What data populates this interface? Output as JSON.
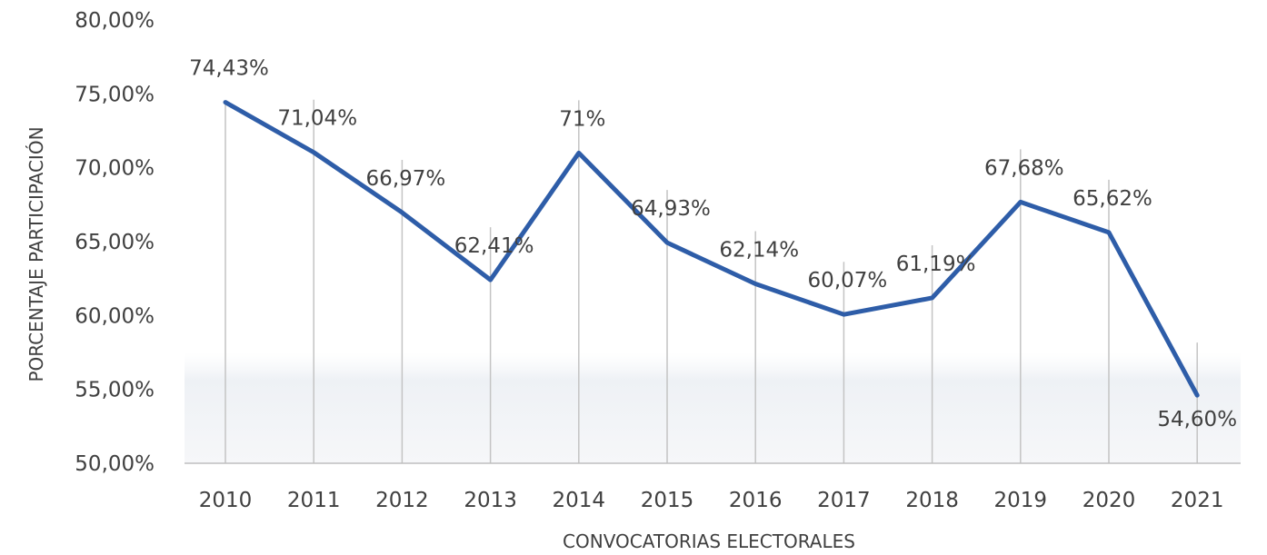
{
  "chart_data": {
    "type": "line",
    "title": "",
    "xlabel": "CONVOCATORIAS ELECTORALES",
    "ylabel": "PORCENTAJE PARTICIPACIÓN",
    "ylim": [
      50,
      80
    ],
    "y_ticks": [
      50,
      55,
      60,
      65,
      70,
      75,
      80
    ],
    "y_tick_labels": [
      "50,00%",
      "55,00%",
      "60,00%",
      "65,00%",
      "70,00%",
      "75,00%",
      "80,00%"
    ],
    "categories": [
      "2010",
      "2011",
      "2012",
      "2013",
      "2014",
      "2015",
      "2016",
      "2017",
      "2018",
      "2019",
      "2020",
      "2021"
    ],
    "series": [
      {
        "values": [
          74.43,
          71.04,
          66.97,
          62.41,
          71,
          64.93,
          62.14,
          60.07,
          61.19,
          67.68,
          65.62,
          54.6
        ],
        "labels": [
          "74,43%",
          "71,04%",
          "66,97%",
          "62,41%",
          "71%",
          "64,93%",
          "62,14%",
          "60,07%",
          "61,19%",
          "67,68%",
          "65,62%",
          "54,60%"
        ],
        "color": "#2e5da8"
      }
    ],
    "grid": false,
    "legend": "none"
  }
}
